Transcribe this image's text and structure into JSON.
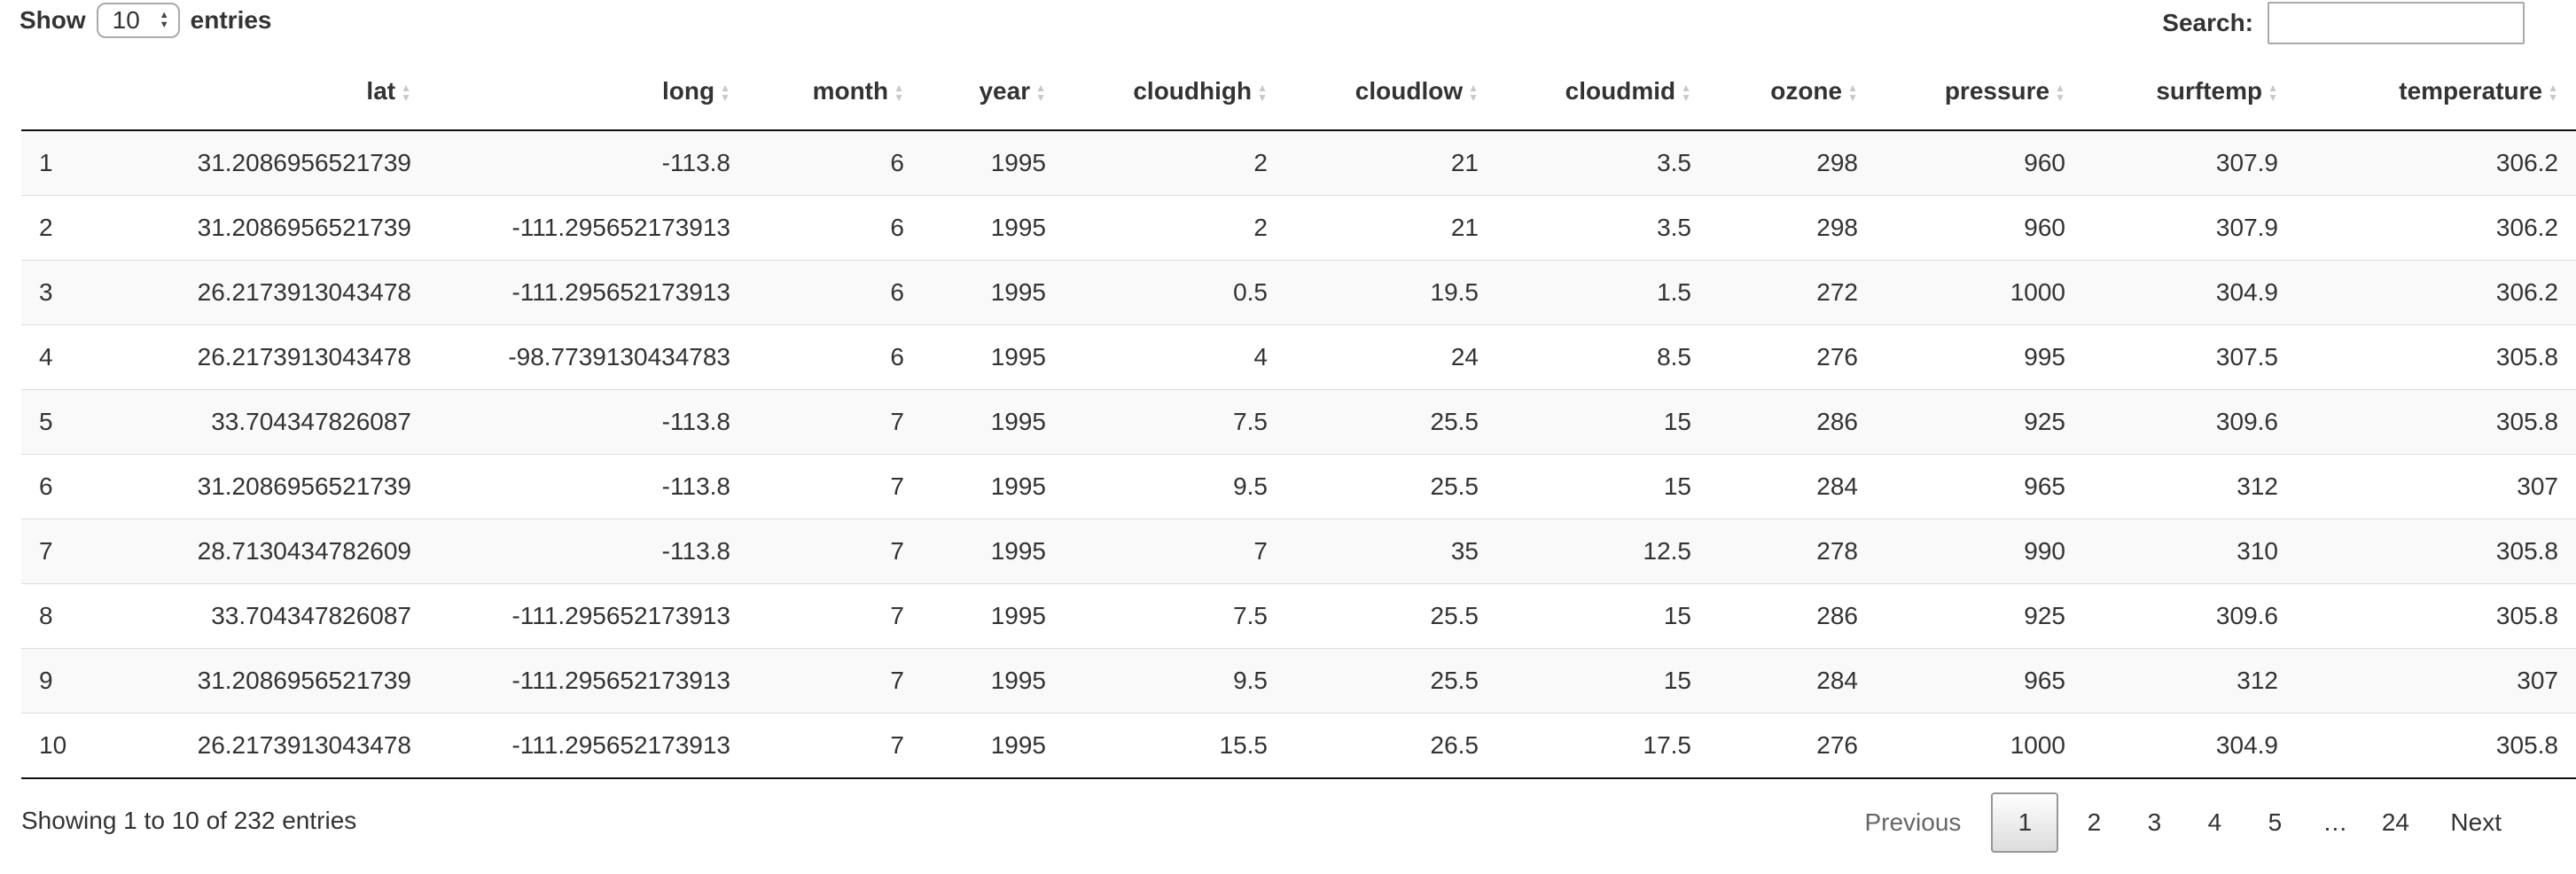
{
  "length": {
    "prefix": "Show",
    "value": "10",
    "suffix": "entries"
  },
  "search": {
    "label": "Search:",
    "value": ""
  },
  "columns": [
    "",
    "lat",
    "long",
    "month",
    "year",
    "cloudhigh",
    "cloudlow",
    "cloudmid",
    "ozone",
    "pressure",
    "surftemp",
    "temperature"
  ],
  "rows": [
    [
      "1",
      "31.2086956521739",
      "-113.8",
      "6",
      "1995",
      "2",
      "21",
      "3.5",
      "298",
      "960",
      "307.9",
      "306.2"
    ],
    [
      "2",
      "31.2086956521739",
      "-111.295652173913",
      "6",
      "1995",
      "2",
      "21",
      "3.5",
      "298",
      "960",
      "307.9",
      "306.2"
    ],
    [
      "3",
      "26.2173913043478",
      "-111.295652173913",
      "6",
      "1995",
      "0.5",
      "19.5",
      "1.5",
      "272",
      "1000",
      "304.9",
      "306.2"
    ],
    [
      "4",
      "26.2173913043478",
      "-98.7739130434783",
      "6",
      "1995",
      "4",
      "24",
      "8.5",
      "276",
      "995",
      "307.5",
      "305.8"
    ],
    [
      "5",
      "33.704347826087",
      "-113.8",
      "7",
      "1995",
      "7.5",
      "25.5",
      "15",
      "286",
      "925",
      "309.6",
      "305.8"
    ],
    [
      "6",
      "31.2086956521739",
      "-113.8",
      "7",
      "1995",
      "9.5",
      "25.5",
      "15",
      "284",
      "965",
      "312",
      "307"
    ],
    [
      "7",
      "28.7130434782609",
      "-113.8",
      "7",
      "1995",
      "7",
      "35",
      "12.5",
      "278",
      "990",
      "310",
      "305.8"
    ],
    [
      "8",
      "33.704347826087",
      "-111.295652173913",
      "7",
      "1995",
      "7.5",
      "25.5",
      "15",
      "286",
      "925",
      "309.6",
      "305.8"
    ],
    [
      "9",
      "31.2086956521739",
      "-111.295652173913",
      "7",
      "1995",
      "9.5",
      "25.5",
      "15",
      "284",
      "965",
      "312",
      "307"
    ],
    [
      "10",
      "26.2173913043478",
      "-111.295652173913",
      "7",
      "1995",
      "15.5",
      "26.5",
      "17.5",
      "276",
      "1000",
      "304.9",
      "305.8"
    ]
  ],
  "info": "Showing 1 to 10 of 232 entries",
  "pagination": {
    "previous": "Previous",
    "pages": [
      "1",
      "2",
      "3",
      "4",
      "5",
      "…",
      "24"
    ],
    "current": "1",
    "next": "Next"
  }
}
